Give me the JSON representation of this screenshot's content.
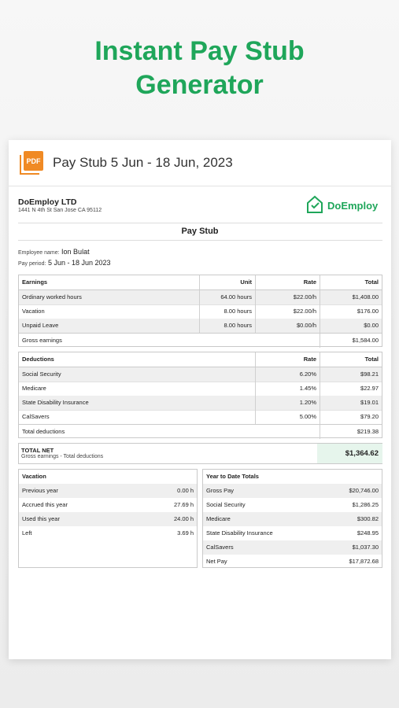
{
  "header": {
    "title": "Instant Pay Stub Generator"
  },
  "document": {
    "icon_label": "PDF",
    "heading": "Pay Stub 5 Jun - 18 Jun, 2023",
    "company": {
      "name": "DoEmploy LTD",
      "address": "1441 N 4th St San Jose CA 95112"
    },
    "logo": "DoEmploy",
    "section_title": "Pay Stub",
    "employee": {
      "name_label": "Employee name:",
      "name": "Ion Bulat",
      "period_label": "Pay period:",
      "period": "5 Jun - 18 Jun 2023"
    },
    "earnings": {
      "columns": [
        "Earnings",
        "Unit",
        "Rate",
        "Total"
      ],
      "rows": [
        [
          "Ordinary worked hours",
          "64.00 hours",
          "$22.00/h",
          "$1,408.00"
        ],
        [
          "Vacation",
          "8.00 hours",
          "$22.00/h",
          "$176.00"
        ],
        [
          "Unpaid Leave",
          "8.00 hours",
          "$0.00/h",
          "$0.00"
        ]
      ],
      "summary": [
        "Gross earnings",
        "$1,584.00"
      ]
    },
    "deductions": {
      "columns": [
        "Deductions",
        "Rate",
        "Total"
      ],
      "rows": [
        [
          "Social Security",
          "6.20%",
          "$98.21"
        ],
        [
          "Medicare",
          "1.45%",
          "$22.97"
        ],
        [
          "State Disability Insurance",
          "1.20%",
          "$19.01"
        ],
        [
          "CalSavers",
          "5.00%",
          "$79.20"
        ]
      ],
      "summary": [
        "Total deductions",
        "$219.38"
      ]
    },
    "total_net": {
      "label": "TOTAL NET",
      "note": "Gross earnings - Total deductions",
      "value": "$1,364.62"
    },
    "vacation": {
      "title": "Vacation",
      "rows": [
        [
          "Previous year",
          "0.00 h"
        ],
        [
          "Accrued this year",
          "27.69 h"
        ],
        [
          "Used this year",
          "24.00 h"
        ],
        [
          "Left",
          "3.69 h"
        ]
      ]
    },
    "ytd": {
      "title": "Year to Date Totals",
      "rows": [
        [
          "Gross Pay",
          "$20,746.00"
        ],
        [
          "Social Security",
          "$1,286.25"
        ],
        [
          "Medicare",
          "$300.82"
        ],
        [
          "State Disability Insurance",
          "$248.95"
        ],
        [
          "CalSavers",
          "$1,037.30"
        ],
        [
          "Net Pay",
          "$17,872.68"
        ]
      ]
    }
  }
}
